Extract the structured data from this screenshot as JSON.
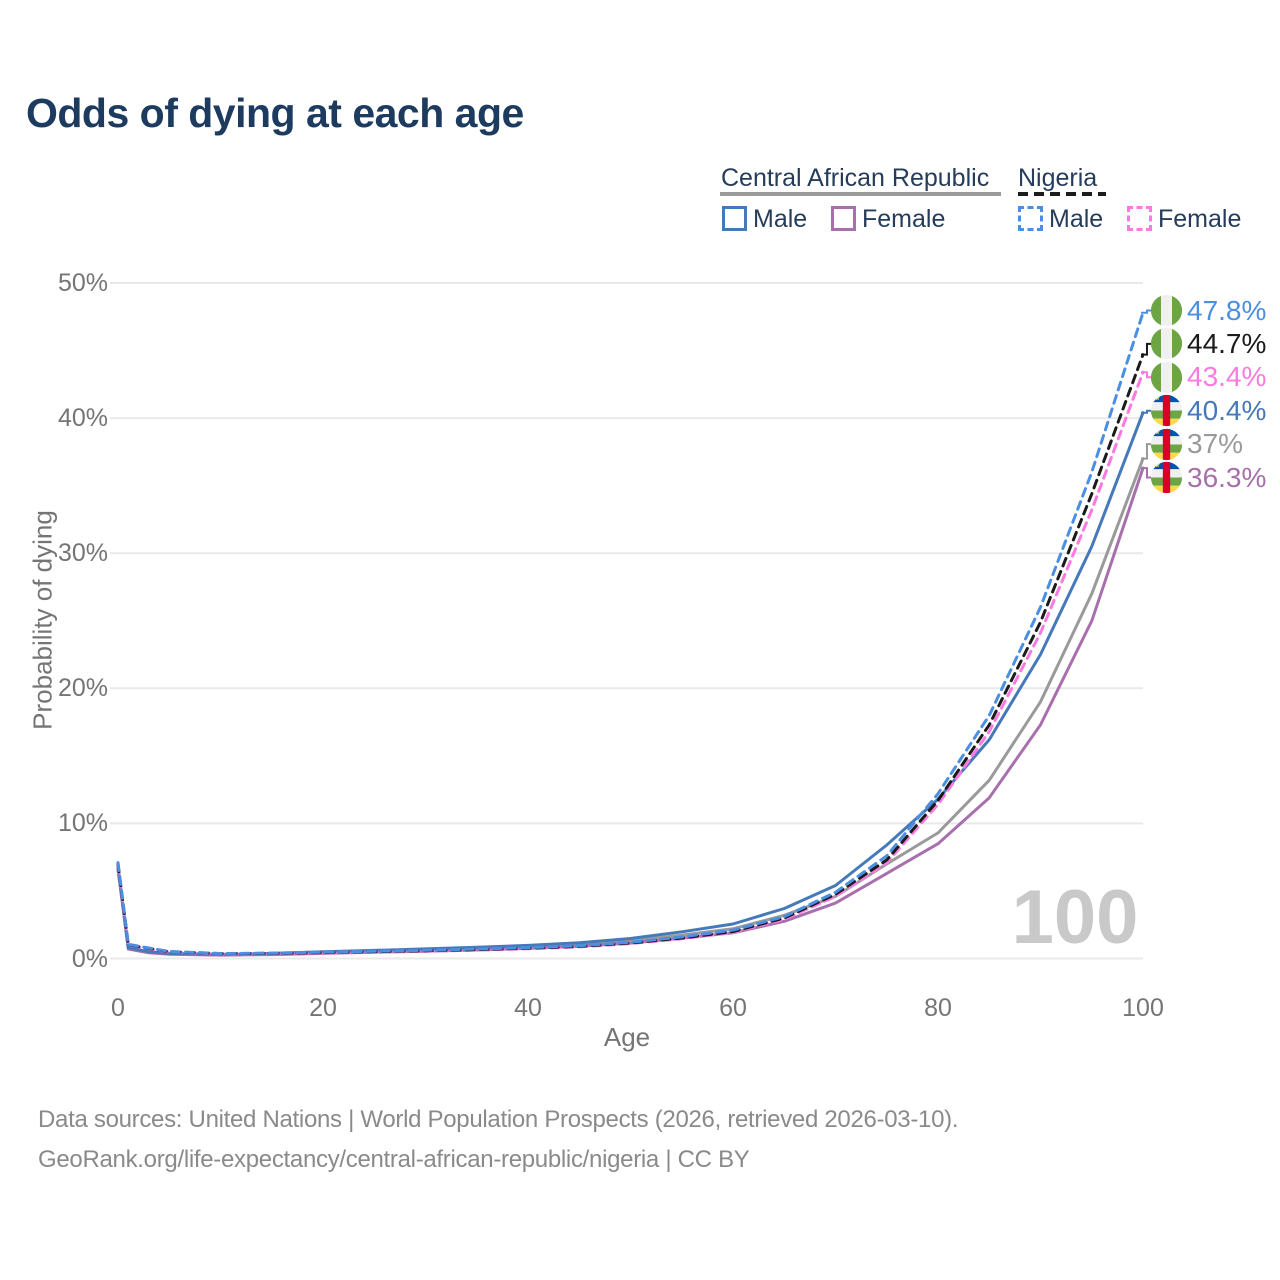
{
  "title": "Odds of dying at each age",
  "legend": {
    "car": {
      "title": "Central African Republic",
      "male": "Male",
      "female": "Female"
    },
    "nigeria": {
      "title": "Nigeria",
      "male": "Male",
      "female": "Female"
    }
  },
  "axes": {
    "x_label": "Age",
    "y_label": "Probability of dying",
    "x_ticks": [
      "0",
      "20",
      "40",
      "60",
      "80",
      "100"
    ],
    "y_ticks": [
      "0%",
      "10%",
      "20%",
      "30%",
      "40%",
      "50%"
    ]
  },
  "watermark": "100",
  "footer": {
    "line1": "Data sources: United Nations | World Population Prospects (2026, retrieved 2026-03-10).",
    "line2": "GeoRank.org/life-expectancy/central-african-republic/nigeria | CC BY"
  },
  "colors": {
    "title_text": "#1d3a5f",
    "legend_text": "#253c5a",
    "axis_text": "#757575",
    "grid": "#e9e9e9",
    "footer_text": "#8a8a8a",
    "watermark": "#c9c9c9",
    "car_male": "#4579b9",
    "car_female": "#a770ad",
    "car_total": "#9a9a9a",
    "ng_male": "#4b8fe2",
    "ng_female": "#fa7ae1",
    "ng_total": "#1b1b1b",
    "flag_blue": "#0052b4",
    "flag_green": "#6da544",
    "flag_yellow": "#ffda44",
    "flag_red": "#d80027",
    "flag_white": "#f0f0f0"
  },
  "chart_data": {
    "type": "line",
    "title": "Odds of dying at each age",
    "xlabel": "Age",
    "ylabel": "Probability of dying",
    "xlim": [
      0,
      100
    ],
    "ylim": [
      0,
      50
    ],
    "grid": "horizontal",
    "legend_position": "top-right",
    "units": "percent",
    "x": [
      0,
      1,
      3,
      5,
      10,
      15,
      20,
      25,
      30,
      35,
      40,
      45,
      50,
      55,
      60,
      65,
      70,
      75,
      80,
      85,
      90,
      95,
      100
    ],
    "series": [
      {
        "name": "Nigeria Male",
        "country": "nigeria",
        "sex": "male",
        "color_key": "ng_male",
        "dashed": true,
        "end_label": "47.8%",
        "values": [
          7.1,
          1.05,
          0.78,
          0.52,
          0.37,
          0.4,
          0.47,
          0.54,
          0.61,
          0.7,
          0.8,
          0.95,
          1.2,
          1.6,
          2.1,
          3.1,
          4.9,
          7.6,
          12.2,
          18.0,
          26.0,
          36.0,
          47.8
        ]
      },
      {
        "name": "Nigeria Both sexes",
        "country": "nigeria",
        "sex": "both",
        "color_key": "ng_total",
        "dashed": true,
        "end_label": "44.7%",
        "values": [
          7.0,
          1.02,
          0.75,
          0.5,
          0.36,
          0.38,
          0.44,
          0.51,
          0.58,
          0.66,
          0.76,
          0.9,
          1.15,
          1.52,
          2.0,
          3.0,
          4.75,
          7.3,
          11.7,
          17.3,
          24.9,
          34.4,
          44.7
        ]
      },
      {
        "name": "Nigeria Female",
        "country": "nigeria",
        "sex": "female",
        "color_key": "ng_female",
        "dashed": true,
        "end_label": "43.4%",
        "values": [
          6.9,
          1.0,
          0.72,
          0.48,
          0.34,
          0.36,
          0.41,
          0.48,
          0.54,
          0.62,
          0.72,
          0.86,
          1.1,
          1.46,
          1.93,
          2.9,
          4.6,
          7.1,
          11.4,
          16.8,
          24.1,
          33.2,
          43.4
        ]
      },
      {
        "name": "Central African Republic Male",
        "country": "car",
        "sex": "male",
        "color_key": "car_male",
        "dashed": false,
        "end_label": "40.4%",
        "values": [
          6.8,
          0.8,
          0.5,
          0.38,
          0.3,
          0.38,
          0.5,
          0.6,
          0.71,
          0.83,
          0.97,
          1.17,
          1.48,
          1.98,
          2.55,
          3.7,
          5.4,
          8.4,
          11.8,
          16.2,
          22.5,
          30.5,
          40.4
        ]
      },
      {
        "name": "Central African Republic Both sexes",
        "country": "car",
        "sex": "both",
        "color_key": "car_total",
        "dashed": false,
        "end_label": "37%",
        "values": [
          6.7,
          0.75,
          0.46,
          0.34,
          0.27,
          0.33,
          0.44,
          0.53,
          0.62,
          0.73,
          0.86,
          1.03,
          1.3,
          1.73,
          2.2,
          3.2,
          4.6,
          7.0,
          9.3,
          13.2,
          19.0,
          27.0,
          37.0
        ]
      },
      {
        "name": "Central African Republic Female",
        "country": "car",
        "sex": "female",
        "color_key": "car_female",
        "dashed": false,
        "end_label": "36.3%",
        "values": [
          6.6,
          0.7,
          0.42,
          0.31,
          0.25,
          0.29,
          0.38,
          0.46,
          0.54,
          0.63,
          0.75,
          0.9,
          1.14,
          1.5,
          1.9,
          2.75,
          4.1,
          6.3,
          8.5,
          11.9,
          17.3,
          25.0,
          36.3
        ]
      }
    ]
  }
}
